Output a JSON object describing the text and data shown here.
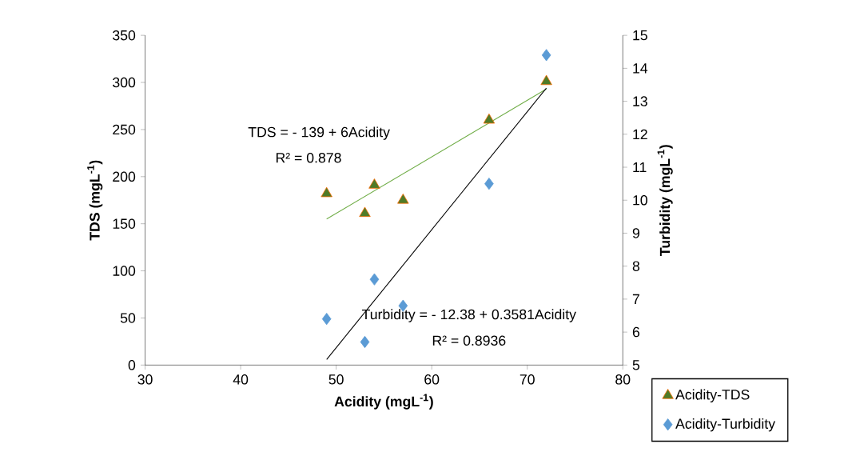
{
  "chart_data": {
    "type": "scatter",
    "xlabel": "Acidity (mgL$^{-1}$)",
    "ylabel": "TDS (mgL$^{-1}$)",
    "y2label": "Turbidity (mgL$^{-1}$)",
    "xlim": [
      30,
      80
    ],
    "xticks": [
      30,
      40,
      50,
      60,
      70,
      80
    ],
    "ylim": [
      0,
      350
    ],
    "yticks": [
      0,
      50,
      100,
      150,
      200,
      250,
      300,
      350
    ],
    "y2lim": [
      5,
      15
    ],
    "y2ticks": [
      5,
      6,
      7,
      8,
      9,
      10,
      11,
      12,
      13,
      14,
      15
    ],
    "legend": "bottom right",
    "series": [
      {
        "name": "Acidity-TDS",
        "marker": "triangle",
        "color": "#4f7b28",
        "x": [
          49,
          53,
          54,
          57,
          66,
          72
        ],
        "values": [
          182,
          161,
          191,
          175,
          260,
          301
        ]
      },
      {
        "name": "Acidity-Turbidity",
        "marker": "diamond",
        "color": "#5b9bd5",
        "axis": "y2",
        "x": [
          49,
          53,
          54,
          57,
          66,
          72
        ],
        "values": [
          6.4,
          5.7,
          7.6,
          6.8,
          10.5,
          14.4
        ]
      },
      {
        "type": "line",
        "color": "#70ad47",
        "x": [
          49,
          72
        ],
        "values": [
          155,
          293
        ]
      },
      {
        "type": "line",
        "color": "#000000",
        "axis": "y2",
        "x": [
          49,
          72
        ],
        "values": [
          5.17,
          13.4
        ]
      }
    ],
    "annotations": [
      "TDS = - 139 + 6Acidity",
      "R² = 0.878",
      "Turbidity = - 12.38 + 0.3581Acidity",
      "R² = 0.8936"
    ]
  }
}
